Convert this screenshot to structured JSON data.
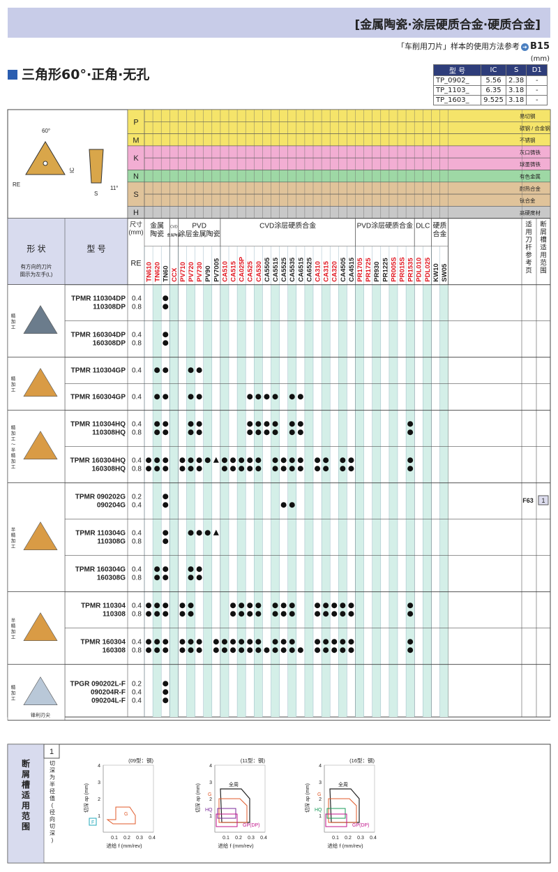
{
  "header": {
    "title": "[金属陶瓷·涂层硬质合金·硬质合金]",
    "ref_text": "「车削用刀片」样本的使用方法参考",
    "ref_page": "B15",
    "unit": "(mm)"
  },
  "section_title": "三角形60°·正角·无孔",
  "dim_table": {
    "headers": [
      "型 号",
      "IC",
      "S",
      "D1"
    ],
    "rows": [
      [
        "TP_0902_",
        "5.56",
        "2.38",
        "-"
      ],
      [
        "TP_1103_",
        "6.35",
        "3.18",
        "-"
      ],
      [
        "TP_1603_",
        "9.525",
        "3.18",
        "-"
      ]
    ]
  },
  "diagram_labels": {
    "angle": "60°",
    "ic": "IC",
    "re": "RE",
    "s": "S",
    "clearance": "11°"
  },
  "materials": [
    {
      "code": "P",
      "color": "#f5e46a",
      "rows": [
        {
          "label": "易切钢"
        },
        {
          "label": "碳钢 / 合金钢"
        }
      ]
    },
    {
      "code": "M",
      "color": "#f5e46a",
      "rows": [
        {
          "label": "不锈钢"
        }
      ]
    },
    {
      "code": "K",
      "color": "#f2aed3",
      "rows": [
        {
          "label": "灰口铸铁"
        },
        {
          "label": "球墨铸铁"
        }
      ]
    },
    {
      "code": "N",
      "color": "#9ed8a5",
      "rows": [
        {
          "label": "有色金属"
        }
      ]
    },
    {
      "code": "S",
      "color": "#e0c39a",
      "rows": [
        {
          "label": "耐热合金"
        },
        {
          "label": "钛合金"
        }
      ]
    },
    {
      "code": "H",
      "color": "#c8c8c8",
      "rows": [
        {
          "label": "高硬度材"
        }
      ]
    }
  ],
  "col_headers": {
    "shape": "形 状",
    "shape_note": "有方向的刀片\n图示为左手(L)",
    "model": "型 号",
    "size": "尺寸\n(mm)",
    "re": "RE",
    "groups": [
      "金属\n陶瓷",
      "CVD\n金属陶瓷",
      "PVD\n涂层金属陶瓷",
      "CVD涂层硬质合金",
      "PVD涂层硬质合金",
      "DLC",
      "硬质\n合金",
      "适用刀杆参考页",
      "断屑槽适用范围"
    ]
  },
  "grades": [
    {
      "n": "TN610",
      "c": "#e0141e"
    },
    {
      "n": "TN620",
      "c": "#e0141e"
    },
    {
      "n": "TN60",
      "c": "#222"
    },
    {
      "n": "CCX",
      "c": "#e0141e"
    },
    {
      "n": "PV710",
      "c": "#e0141e"
    },
    {
      "n": "PV720",
      "c": "#e0141e"
    },
    {
      "n": "PV730",
      "c": "#e0141e"
    },
    {
      "n": "PV90",
      "c": "#222"
    },
    {
      "n": "PV7005",
      "c": "#222"
    },
    {
      "n": "CA510",
      "c": "#e0141e"
    },
    {
      "n": "CA515",
      "c": "#e0141e"
    },
    {
      "n": "CA025P",
      "c": "#e0141e"
    },
    {
      "n": "CA525",
      "c": "#e0141e"
    },
    {
      "n": "CA530",
      "c": "#e0141e"
    },
    {
      "n": "CA5505",
      "c": "#222"
    },
    {
      "n": "CA5515",
      "c": "#222"
    },
    {
      "n": "CA5525",
      "c": "#222"
    },
    {
      "n": "CA5535",
      "c": "#222"
    },
    {
      "n": "CA6515",
      "c": "#222"
    },
    {
      "n": "CA6525",
      "c": "#222"
    },
    {
      "n": "CA310",
      "c": "#e0141e"
    },
    {
      "n": "CA315",
      "c": "#e0141e"
    },
    {
      "n": "CA320",
      "c": "#e0141e"
    },
    {
      "n": "CA4505",
      "c": "#222"
    },
    {
      "n": "CA4515",
      "c": "#222"
    },
    {
      "n": "PR1705",
      "c": "#e0141e"
    },
    {
      "n": "PR1725",
      "c": "#e0141e"
    },
    {
      "n": "PR930",
      "c": "#222"
    },
    {
      "n": "PR1225",
      "c": "#222"
    },
    {
      "n": "PR005S",
      "c": "#e0141e"
    },
    {
      "n": "PR015S",
      "c": "#e0141e"
    },
    {
      "n": "PR1535",
      "c": "#e0141e"
    },
    {
      "n": "PDL010",
      "c": "#e0141e"
    },
    {
      "n": "PDL025",
      "c": "#e0141e"
    },
    {
      "n": "KW10",
      "c": "#222"
    },
    {
      "n": "SW05",
      "c": "#222"
    }
  ],
  "groups": [
    {
      "label": "精加工",
      "rows": [
        {
          "m": [
            "TPMR 110304DP",
            "110308DP"
          ],
          "re": [
            "0.4",
            "0.8"
          ]
        },
        {
          "m": [
            "TPMR 160304DP",
            "160308DP"
          ],
          "re": [
            "0.4",
            "0.8"
          ]
        }
      ]
    },
    {
      "label": "精加工",
      "rows": [
        {
          "m": [
            "TPMR 110304GP"
          ],
          "re": [
            "0.4"
          ]
        },
        {
          "m": [
            "TPMR 160304GP"
          ],
          "re": [
            "0.4"
          ]
        }
      ]
    },
    {
      "label": "精加工～半精加工",
      "rows": [
        {
          "m": [
            "TPMR 110304HQ",
            "110308HQ"
          ],
          "re": [
            "0.4",
            "0.8"
          ]
        },
        {
          "m": [
            "TPMR 160304HQ",
            "160308HQ"
          ],
          "re": [
            "0.4",
            "0.8"
          ]
        }
      ]
    },
    {
      "label": "半精加工",
      "rows": [
        {
          "m": [
            "TPMR 090202G",
            "090204G"
          ],
          "re": [
            "0.2",
            "0.4"
          ]
        },
        {
          "m": [
            "TPMR 110304G",
            "110308G"
          ],
          "re": [
            "0.4",
            "0.8"
          ]
        },
        {
          "m": [
            "TPMR 160304G",
            "160308G"
          ],
          "re": [
            "0.4",
            "0.8"
          ]
        }
      ]
    },
    {
      "label": "半精加工",
      "rows": [
        {
          "m": [
            "TPMR 110304",
            "110308"
          ],
          "re": [
            "0.4",
            "0.8"
          ]
        },
        {
          "m": [
            "TPMR 160304",
            "160308"
          ],
          "re": [
            "0.4",
            "0.8"
          ]
        }
      ]
    },
    {
      "label": "精加工",
      "note": "锋利刃尖",
      "rows": [
        {
          "m": [
            "TPGR 090202L-F",
            "090204R-F",
            "090204L-F"
          ],
          "re": [
            "0.2",
            "0.4",
            "0.4"
          ]
        }
      ]
    }
  ],
  "holder_ref": "F63",
  "chip_ref": "1",
  "bottom": {
    "title": "断屑槽适用范围",
    "num": "1",
    "ylabel": "切深 ap (mm)",
    "xlabel": "进给 f (mm/rev)",
    "note": "切深为半径值(径向切深)",
    "charts": [
      {
        "t": "(09型：钢)"
      },
      {
        "t": "(11型：钢)"
      },
      {
        "t": "(16型：钢)"
      }
    ],
    "labels": {
      "all": "全周",
      "g": "G",
      "hq": "HQ",
      "gp": "GP(DP)",
      "f": "F"
    },
    "xt": [
      "0.1",
      "0.2",
      "0.3",
      "0.4"
    ],
    "yt": [
      "1",
      "2",
      "3",
      "4"
    ]
  }
}
